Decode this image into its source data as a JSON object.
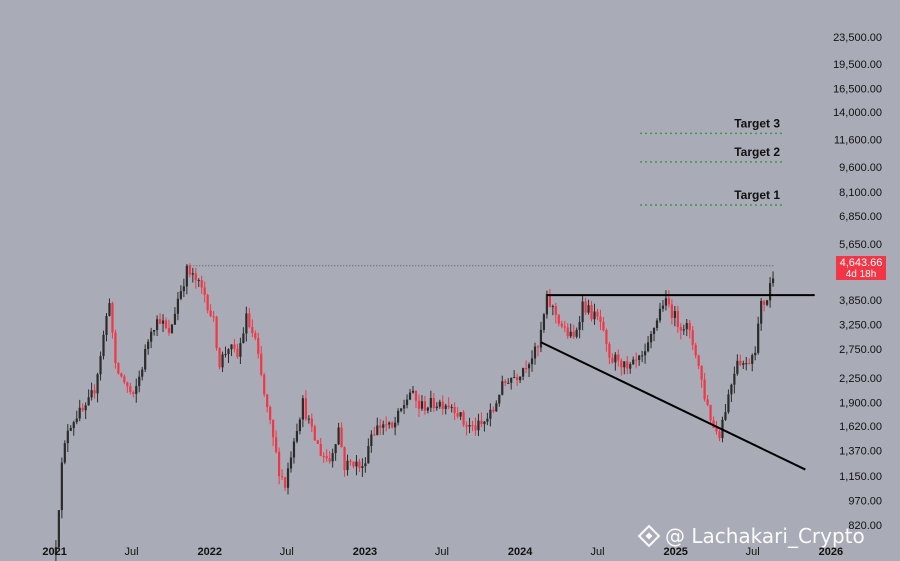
{
  "chart_data": {
    "type": "candlestick",
    "scale": "log",
    "grid": false,
    "y_ticks": [
      "23,500.00",
      "19,500.00",
      "16,500.00",
      "14,000.00",
      "11,600.00",
      "9,600.00",
      "8,100.00",
      "6,850.00",
      "5,650.00",
      "3,850.00",
      "3,250.00",
      "2,750.00",
      "2,250.00",
      "1,900.00",
      "1,620.00",
      "1,370.00",
      "1,150.00",
      "970.00",
      "820.00"
    ],
    "y_tick_values": [
      23500,
      19500,
      16500,
      14000,
      11600,
      9600,
      8100,
      6850,
      5650,
      3850,
      3250,
      2750,
      2250,
      1900,
      1620,
      1370,
      1150,
      970,
      820
    ],
    "x_ticks": [
      {
        "label": "2021",
        "date": "2021-01-01",
        "bold": true
      },
      {
        "label": "Jul",
        "date": "2021-07-01",
        "bold": false
      },
      {
        "label": "2022",
        "date": "2022-01-01",
        "bold": true
      },
      {
        "label": "Jul",
        "date": "2022-07-01",
        "bold": false
      },
      {
        "label": "2023",
        "date": "2023-01-01",
        "bold": true
      },
      {
        "label": "Jul",
        "date": "2023-07-01",
        "bold": false
      },
      {
        "label": "2024",
        "date": "2024-01-01",
        "bold": true
      },
      {
        "label": "Jul",
        "date": "2024-07-01",
        "bold": false
      },
      {
        "label": "2025",
        "date": "2025-01-01",
        "bold": true
      },
      {
        "label": "Jul",
        "date": "2025-07-01",
        "bold": false
      },
      {
        "label": "2026",
        "date": "2026-01-01",
        "bold": true
      }
    ],
    "x_range": [
      "2020-12-07",
      "2026-02-15"
    ],
    "y_range": [
      760,
      27500
    ],
    "current_price": {
      "label": "4,643.66",
      "sub": "4d 18h",
      "value": 4643.66,
      "color": "#f23645"
    },
    "colors": {
      "up": "#2b2b2b",
      "down": "#f23645"
    },
    "targets": [
      {
        "label": "Target 3",
        "value": 12100,
        "color": "#3c9a4a"
      },
      {
        "label": "Target 2",
        "value": 9950,
        "color": "#3c9a4a"
      },
      {
        "label": "Target 1",
        "value": 7400,
        "color": "#3c9a4a"
      }
    ],
    "lines": [
      {
        "kind": "ath-dotted",
        "from": [
          "2021-11-09",
          4870
        ],
        "to": [
          "2025-08-20",
          4870
        ]
      },
      {
        "kind": "resistance",
        "from": [
          "2024-03-04",
          3980
        ],
        "to": [
          "2025-11-24",
          3980
        ]
      },
      {
        "kind": "descending-trendline",
        "from": [
          "2024-02-19",
          2880
        ],
        "to": [
          "2025-11-02",
          1200
        ]
      }
    ],
    "anchors": [
      [
        "2021-01-04",
        730
      ],
      [
        "2021-01-18",
        1230
      ],
      [
        "2021-02-01",
        1600
      ],
      [
        "2021-02-22",
        1750
      ],
      [
        "2021-03-15",
        1800
      ],
      [
        "2021-04-05",
        2100
      ],
      [
        "2021-04-26",
        3000
      ],
      [
        "2021-05-10",
        3900
      ],
      [
        "2021-05-24",
        2400
      ],
      [
        "2021-06-14",
        2200
      ],
      [
        "2021-07-05",
        1950
      ],
      [
        "2021-07-26",
        2450
      ],
      [
        "2021-08-16",
        3200
      ],
      [
        "2021-09-06",
        3400
      ],
      [
        "2021-09-27",
        3000
      ],
      [
        "2021-10-18",
        3900
      ],
      [
        "2021-11-08",
        4700
      ],
      [
        "2021-11-29",
        4400
      ],
      [
        "2021-12-20",
        4000
      ],
      [
        "2022-01-10",
        3300
      ],
      [
        "2022-01-24",
        2500
      ],
      [
        "2022-02-14",
        2800
      ],
      [
        "2022-03-07",
        2600
      ],
      [
        "2022-03-28",
        3400
      ],
      [
        "2022-04-18",
        2900
      ],
      [
        "2022-05-09",
        2000
      ],
      [
        "2022-06-13",
        1200
      ],
      [
        "2022-06-27",
        1080
      ],
      [
        "2022-07-18",
        1500
      ],
      [
        "2022-08-08",
        1900
      ],
      [
        "2022-08-29",
        1550
      ],
      [
        "2022-09-19",
        1350
      ],
      [
        "2022-10-10",
        1280
      ],
      [
        "2022-10-31",
        1600
      ],
      [
        "2022-11-14",
        1230
      ],
      [
        "2022-12-05",
        1270
      ],
      [
        "2022-12-26",
        1200
      ],
      [
        "2023-01-16",
        1550
      ],
      [
        "2023-02-13",
        1650
      ],
      [
        "2023-03-06",
        1580
      ],
      [
        "2023-03-27",
        1800
      ],
      [
        "2023-04-17",
        2050
      ],
      [
        "2023-05-08",
        1850
      ],
      [
        "2023-05-29",
        1870
      ],
      [
        "2023-06-19",
        1900
      ],
      [
        "2023-07-10",
        1900
      ],
      [
        "2023-07-31",
        1850
      ],
      [
        "2023-08-21",
        1650
      ],
      [
        "2023-09-11",
        1600
      ],
      [
        "2023-10-02",
        1620
      ],
      [
        "2023-10-30",
        1800
      ],
      [
        "2023-11-13",
        2050
      ],
      [
        "2023-12-04",
        2250
      ],
      [
        "2023-12-25",
        2300
      ],
      [
        "2024-01-15",
        2500
      ],
      [
        "2024-02-12",
        2750
      ],
      [
        "2024-03-04",
        3850
      ],
      [
        "2024-03-25",
        3500
      ],
      [
        "2024-04-15",
        3100
      ],
      [
        "2024-05-06",
        2950
      ],
      [
        "2024-05-27",
        3750
      ],
      [
        "2024-06-17",
        3500
      ],
      [
        "2024-07-08",
        3300
      ],
      [
        "2024-07-29",
        2500
      ],
      [
        "2024-08-19",
        2600
      ],
      [
        "2024-09-09",
        2350
      ],
      [
        "2024-09-30",
        2500
      ],
      [
        "2024-10-21",
        2600
      ],
      [
        "2024-11-11",
        3200
      ],
      [
        "2024-12-02",
        3800
      ],
      [
        "2024-12-16",
        3700
      ],
      [
        "2025-01-06",
        3300
      ],
      [
        "2025-01-27",
        3200
      ],
      [
        "2025-02-17",
        2700
      ],
      [
        "2025-03-10",
        2000
      ],
      [
        "2025-03-31",
        1600
      ],
      [
        "2025-04-14",
        1550
      ],
      [
        "2025-05-05",
        2000
      ],
      [
        "2025-05-26",
        2600
      ],
      [
        "2025-06-16",
        2450
      ],
      [
        "2025-07-07",
        2800
      ],
      [
        "2025-07-21",
        3700
      ],
      [
        "2025-08-04",
        3900
      ],
      [
        "2025-08-18",
        4640
      ]
    ],
    "title": "",
    "xlabel": "",
    "ylabel": ""
  },
  "watermark": {
    "text": "@ Lachakari_Crypto",
    "icon": "binance-diamond-icon"
  }
}
